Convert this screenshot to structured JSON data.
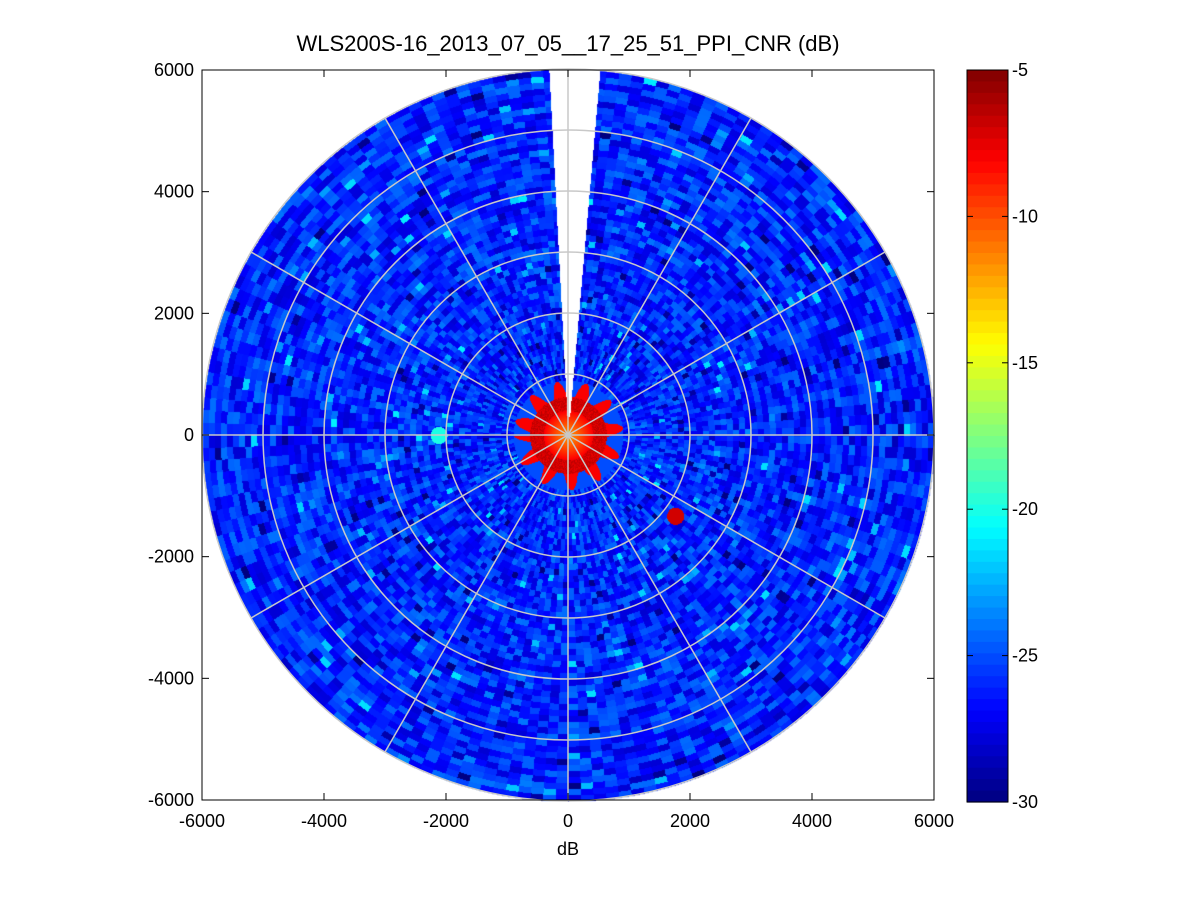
{
  "chart_data": {
    "type": "heatmap",
    "subtype": "polar-ppi",
    "title": "WLS200S-16_2013_07_05__17_25_51_PPI_CNR (dB)",
    "xlabel": "dB",
    "ylabel": "",
    "xlim": [
      -6000,
      6000
    ],
    "ylim": [
      -6000,
      6000
    ],
    "xticks": [
      -6000,
      -4000,
      -2000,
      0,
      2000,
      4000,
      6000
    ],
    "yticks": [
      6000,
      4000,
      2000,
      0,
      -2000,
      -4000,
      -6000
    ],
    "xtick_labels": [
      "-6000",
      "-4000",
      "-2000",
      "0",
      "2000",
      "4000",
      "6000"
    ],
    "ytick_labels": [
      "6000",
      "4000",
      "2000",
      "0",
      "-2000",
      "-4000",
      "-6000"
    ],
    "max_range_m": 6000,
    "range_rings_m": [
      1000,
      2000,
      3000,
      4000,
      5000,
      6000
    ],
    "spoke_angles_deg": [
      0,
      30,
      60,
      90,
      120,
      150,
      180,
      210,
      240,
      270,
      300,
      330
    ],
    "blind_sector": {
      "from_deg": 85,
      "to_deg": 93
    },
    "background_level_db": -26,
    "near_field_level_db": -7,
    "center_level_db": -12,
    "near_field_radius_m": 900,
    "hot_spots": [
      {
        "label": "echo-ese",
        "range_m": 2200,
        "azimuth_deg": -37,
        "level_db": -7
      },
      {
        "label": "echo-w",
        "range_m": 2120,
        "azimuth_deg": 180,
        "level_db": -20
      }
    ],
    "colorbar": {
      "min": -30,
      "max": -5,
      "ticks": [
        -5,
        -10,
        -15,
        -20,
        -25,
        -30
      ],
      "tick_labels": [
        "-5",
        "-10",
        "-15",
        "-20",
        "-25",
        "-30"
      ],
      "colormap": "jet"
    }
  }
}
